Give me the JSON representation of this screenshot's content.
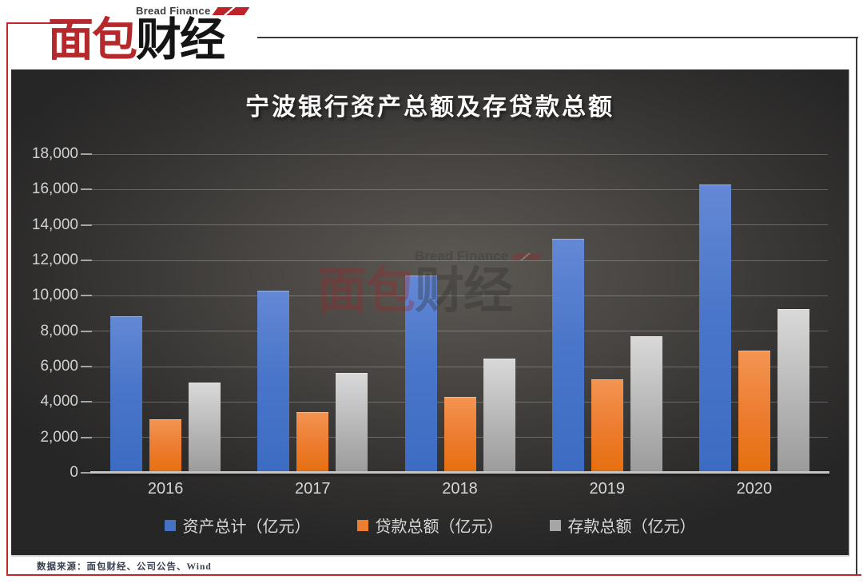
{
  "logo": {
    "brand_en": "Bread Finance",
    "zh_red": "面包",
    "zh_black": "财经"
  },
  "watermark": {
    "brand_en": "Bread Finance",
    "zh_red": "面包",
    "zh_black": "财经"
  },
  "source_note": "数据来源：面包财经、公司公告、Wind",
  "colors": {
    "logo_red": "#b5282b",
    "frame_red": "#c0272d",
    "frame_dark": "#3a3a3a",
    "panel_text_light": "#d6d6d6",
    "series_blue": "#4472c4",
    "series_orange": "#ed7d31",
    "series_gray": "#a6a6a6"
  },
  "chart_data": {
    "type": "bar",
    "title": "宁波银行资产总额及存贷款总额",
    "categories": [
      "2016",
      "2017",
      "2018",
      "2019",
      "2020"
    ],
    "series": [
      {
        "name": "资产总计（亿元）",
        "color": "#4472c4",
        "values": [
          8850,
          10300,
          11150,
          13200,
          16270
        ]
      },
      {
        "name": "贷款总额（亿元）",
        "color": "#ed7d31",
        "values": [
          3000,
          3450,
          4300,
          5300,
          6900
        ]
      },
      {
        "name": "存款总额（亿元）",
        "color": "#a6a6a6",
        "values": [
          5100,
          5650,
          6450,
          7700,
          9250
        ]
      }
    ],
    "xlabel": "",
    "ylabel": "",
    "ylim": [
      0,
      18000
    ],
    "ytick_step": 2000,
    "ytick_labels": [
      "0",
      "2,000",
      "4,000",
      "6,000",
      "8,000",
      "10,000",
      "12,000",
      "14,000",
      "16,000",
      "18,000"
    ],
    "grid": true,
    "legend_position": "bottom"
  }
}
